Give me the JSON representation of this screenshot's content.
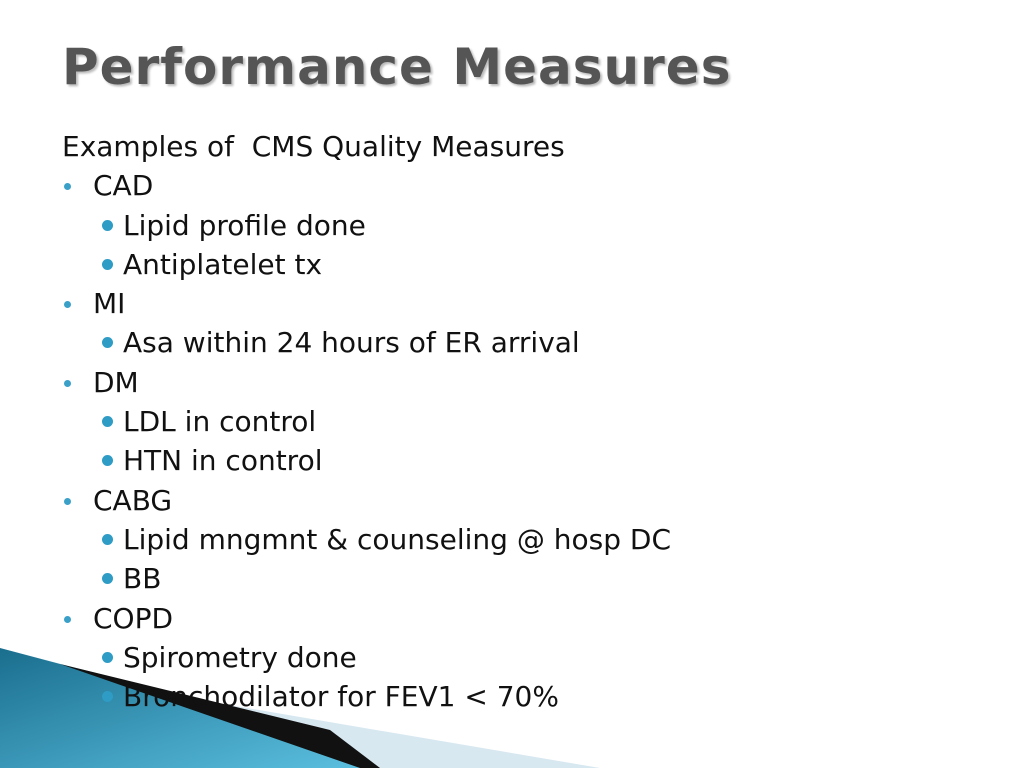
{
  "title": "Performance Measures",
  "intro": "Examples of  CMS Quality Measures",
  "items": [
    {
      "label": "CAD",
      "subitems": [
        "Lipid profile done",
        "Antiplatelet tx"
      ]
    },
    {
      "label": "MI",
      "subitems": [
        "Asa within 24 hours of ER arrival"
      ]
    },
    {
      "label": "DM",
      "subitems": [
        "LDL in control",
        "HTN in control"
      ]
    },
    {
      "label": "CABG",
      "subitems": [
        "Lipid mngmnt & counseling @ hosp DC",
        "BB"
      ]
    },
    {
      "label": "COPD",
      "subitems": [
        "Spirometry done",
        "Bronchodilator for FEV1 < 70%"
      ]
    }
  ]
}
